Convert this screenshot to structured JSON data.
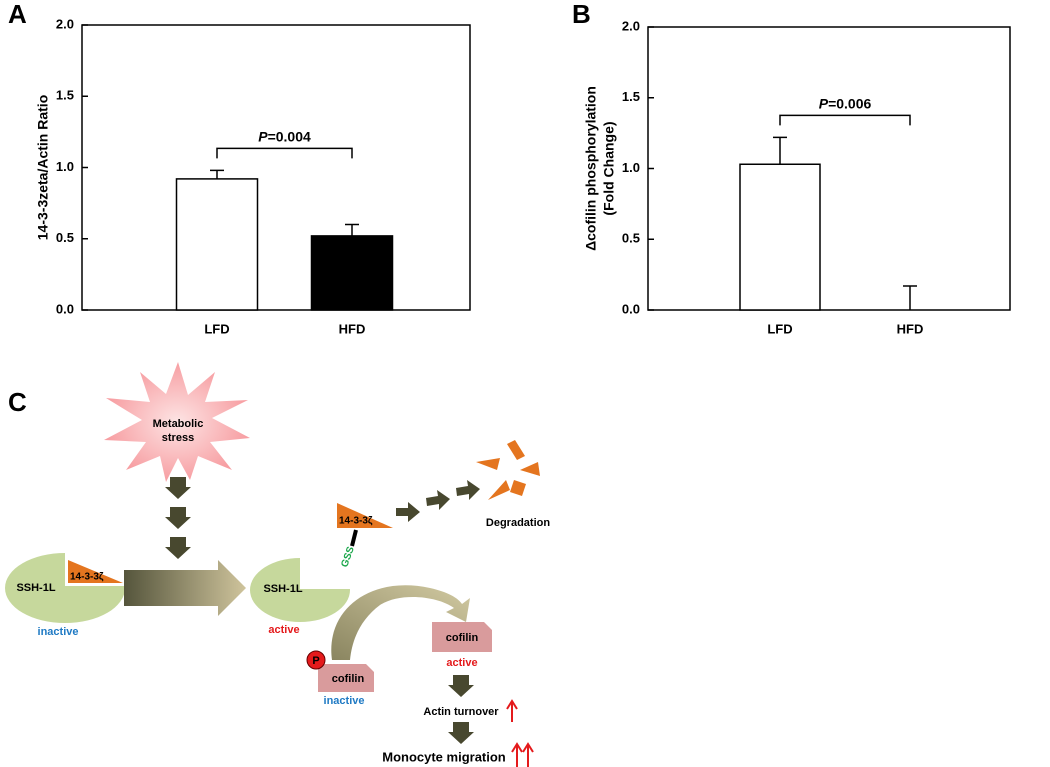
{
  "chart_data": [
    {
      "type": "bar",
      "panel_label": "A",
      "ylabel": [
        "14-3-3zeta/Actin Ratio"
      ],
      "categories": [
        "LFD",
        "HFD"
      ],
      "values": [
        0.92,
        0.52
      ],
      "errors": [
        0.06,
        0.08
      ],
      "colors": [
        "#ffffff",
        "#000000"
      ],
      "annotation": "P=0.004",
      "ylim": [
        0,
        2.0
      ],
      "yticks": [
        {
          "value": 0,
          "label": "0.0"
        },
        {
          "value": 0.5,
          "label": "0.5"
        },
        {
          "value": 1.0,
          "label": "1.0"
        },
        {
          "value": 1.5,
          "label": "1.5"
        },
        {
          "value": 2.0,
          "label": "2.0"
        }
      ]
    },
    {
      "type": "bar",
      "panel_label": "B",
      "ylabel": [
        "Δcofilin phosphorylation",
        "(Fold Change)"
      ],
      "categories": [
        "LFD",
        "HFD"
      ],
      "values": [
        1.03,
        0
      ],
      "errors": [
        0.19,
        0.17
      ],
      "colors": [
        "#ffffff",
        "#ffffff"
      ],
      "annotation": "P=0.006",
      "ylim": [
        0,
        2.0
      ],
      "yticks": [
        {
          "value": 0,
          "label": "0.0"
        },
        {
          "value": 0.5,
          "label": "0.5"
        },
        {
          "value": 1.0,
          "label": "1.0"
        },
        {
          "value": 1.5,
          "label": "1.5"
        },
        {
          "value": 2.0,
          "label": "2.0"
        }
      ]
    }
  ],
  "diagram": {
    "panel_label": "C",
    "stress": [
      "Metabolic",
      "stress"
    ],
    "ssh_inactive": "SSH-1L",
    "protein_bound": "14-3-3ζ",
    "state_inactive": "inactive",
    "ssh_active": "SSH-1L",
    "state_active": "active",
    "protein_free": "14-3-3ζ",
    "modification": "GSS",
    "degradation": "Degradation",
    "cofilin_active": "cofilin",
    "cofilin_active_state": "active",
    "phospho": "P",
    "cofilin_inactive": "cofilin",
    "cofilin_inactive_state": "inactive",
    "outcome_1": "Actin turnover",
    "outcome_2": "Monocyte migration"
  }
}
